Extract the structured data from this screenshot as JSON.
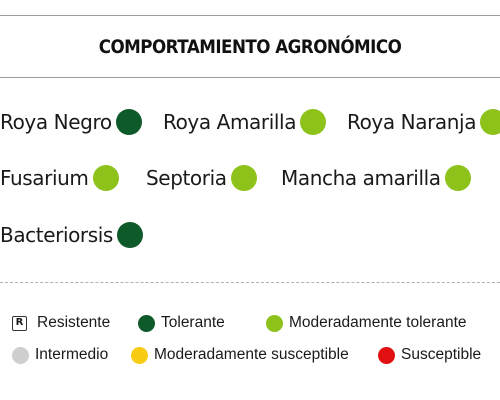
{
  "header": {
    "title": "COMPORTAMIENTO AGRONÓMICO"
  },
  "colors": {
    "tolerante": "#0f5a2b",
    "moderadamente_tolerante": "#8cc21a",
    "intermedio": "#cfcfcf",
    "moderadamente_susceptible": "#f7cc12",
    "susceptible": "#e01010"
  },
  "diseases": [
    {
      "label": "Roya Negro",
      "rating": "tolerante"
    },
    {
      "label": "Roya Amarilla",
      "rating": "moderadamente_tolerante"
    },
    {
      "label": "Roya Naranja",
      "rating": "moderadamente_tolerante"
    },
    {
      "label": "Fusarium",
      "rating": "moderadamente_tolerante"
    },
    {
      "label": "Septoria",
      "rating": "moderadamente_tolerante"
    },
    {
      "label": "Mancha amarilla",
      "rating": "moderadamente_tolerante"
    },
    {
      "label": "Bacteriorsis",
      "rating": "tolerante"
    }
  ],
  "legend": {
    "resistente_symbol": "R",
    "items": [
      {
        "label": "Resistente",
        "key": "resistente"
      },
      {
        "label": "Tolerante",
        "key": "tolerante"
      },
      {
        "label": "Moderadamente tolerante",
        "key": "moderadamente_tolerante"
      },
      {
        "label": "Intermedio",
        "key": "intermedio"
      },
      {
        "label": "Moderadamente susceptible",
        "key": "moderadamente_susceptible"
      },
      {
        "label": "Susceptible",
        "key": "susceptible"
      }
    ]
  }
}
